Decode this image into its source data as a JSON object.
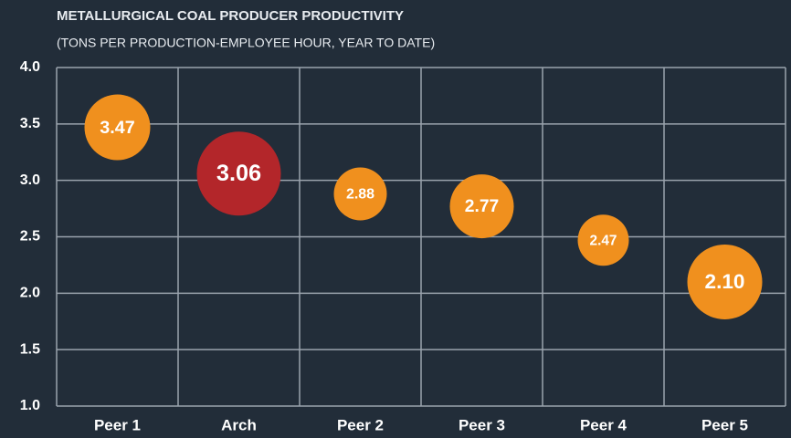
{
  "chart_data": {
    "type": "bubble",
    "title": "METALLURGICAL COAL PRODUCER PRODUCTIVITY",
    "subtitle": "(TONS PER PRODUCTION-EMPLOYEE HOUR, YEAR TO DATE)",
    "categories": [
      "Peer 1",
      "Arch",
      "Peer 2",
      "Peer 3",
      "Peer 4",
      "Peer 5"
    ],
    "values": [
      3.47,
      3.06,
      2.88,
      2.77,
      2.47,
      2.1
    ],
    "value_labels": [
      "3.47",
      "3.06",
      "2.88",
      "2.77",
      "2.47",
      "2.10"
    ],
    "sizes": [
      72,
      92,
      58,
      70,
      56,
      82
    ],
    "colors": [
      "#f0901e",
      "#b3262a",
      "#f0901e",
      "#f0901e",
      "#f0901e",
      "#f0901e"
    ],
    "ylim": [
      1,
      4
    ],
    "yticks": [
      {
        "value": 1,
        "label": "1.0"
      },
      {
        "value": 1.5,
        "label": "1.5"
      },
      {
        "value": 2,
        "label": "2.0"
      },
      {
        "value": 2.5,
        "label": "2.5"
      },
      {
        "value": 3,
        "label": "3.0"
      },
      {
        "value": 3.5,
        "label": "3.5"
      },
      {
        "value": 4,
        "label": "4.0"
      }
    ],
    "grid": true
  }
}
